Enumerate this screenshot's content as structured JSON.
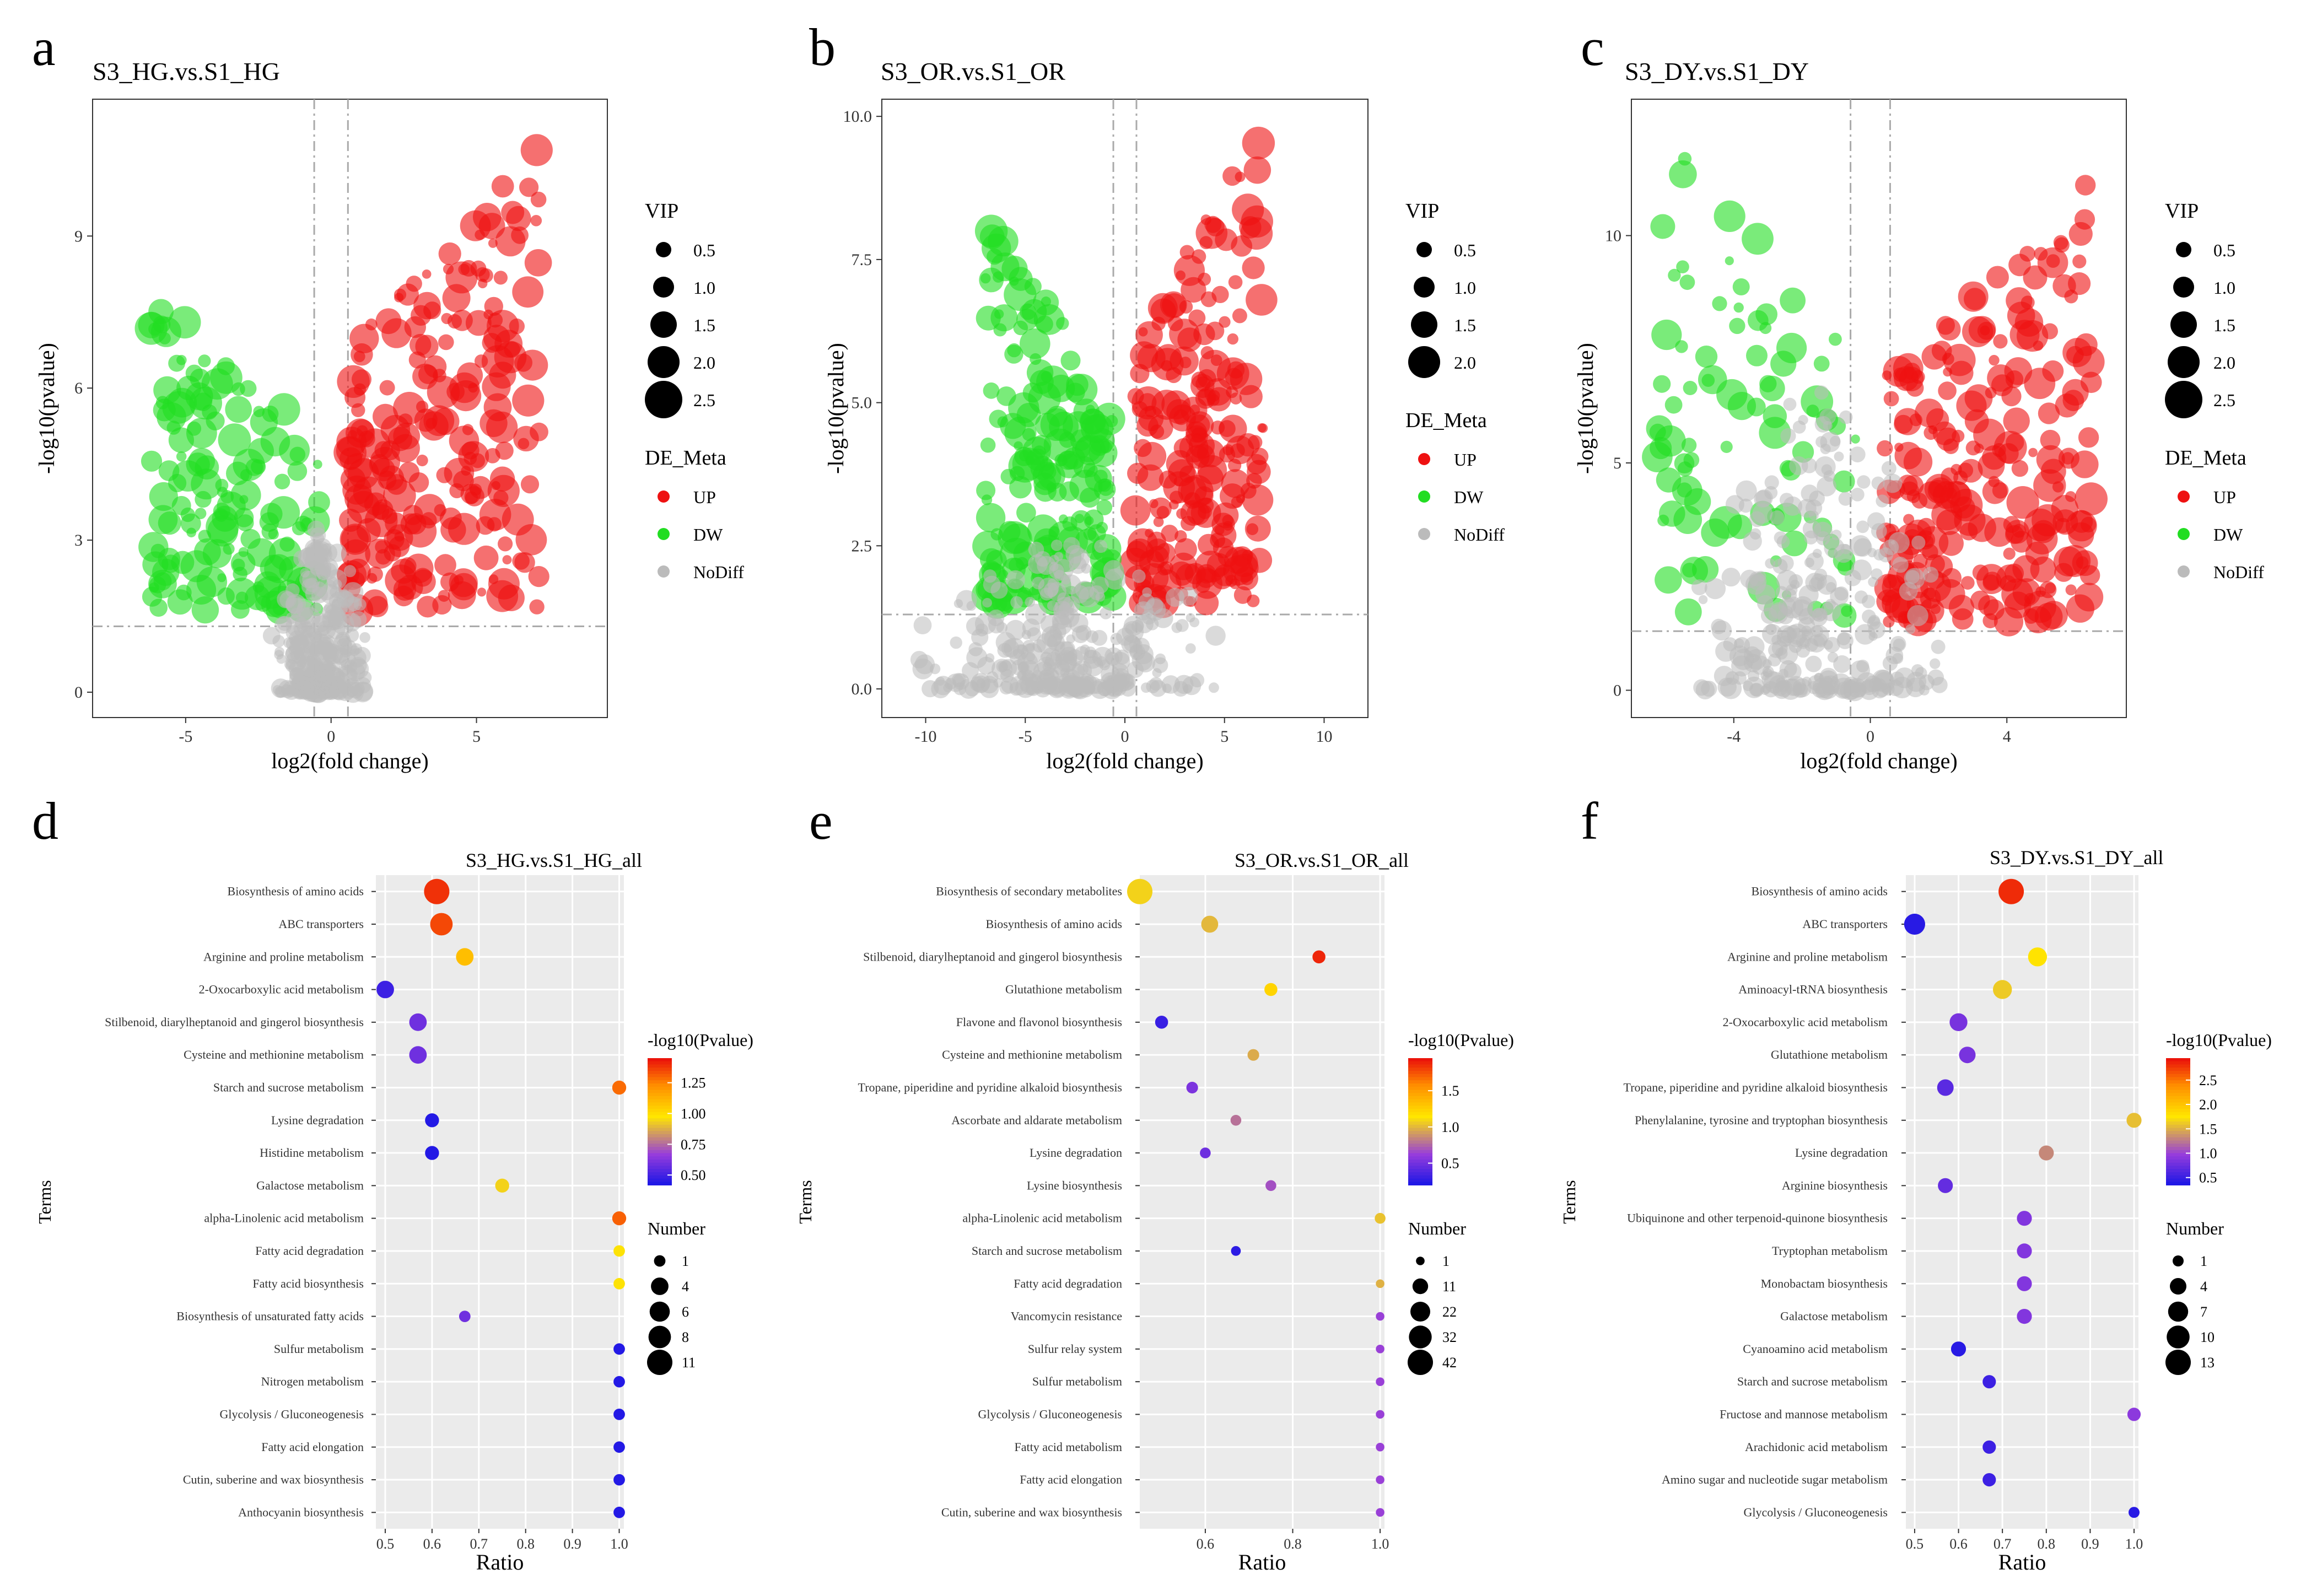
{
  "chart_data": [
    {
      "type": "scatter",
      "panel": "a",
      "title": "S3_HG.vs.S1_HG",
      "xlabel": "log2(fold change)",
      "ylabel": "-log10(pvalue)",
      "xlim": [
        -8.2,
        9.5
      ],
      "ylim": [
        -0.5,
        11.7
      ],
      "xticks": [
        -5,
        0,
        5
      ],
      "yticks": [
        0,
        3,
        6,
        9
      ],
      "xtick_labels": [
        "-5",
        "0",
        "5"
      ],
      "ytick_labels": [
        "0",
        "3",
        "6",
        "9"
      ],
      "vlines": [
        -0.58,
        0.58
      ],
      "hline": 1.3,
      "size_legend": {
        "title": "VIP",
        "labels": [
          "0.5",
          "1.0",
          "1.5",
          "2.0",
          "2.5"
        ]
      },
      "color_legend": {
        "title": "DE_Meta",
        "labels": [
          "UP",
          "DW",
          "NoDiff"
        ],
        "colors": [
          "#ee1111",
          "#22dd22",
          "#bbbbbb"
        ]
      },
      "series": [
        {
          "name": "UP",
          "color": "#ee1111",
          "xrange": [
            0.5,
            7.2
          ],
          "yrange": [
            1.6,
            10.9
          ],
          "count": 230,
          "seed": 11
        },
        {
          "name": "DW",
          "color": "#22dd22",
          "xrange": [
            -6.2,
            -0.4
          ],
          "yrange": [
            1.6,
            8.0
          ],
          "count": 150,
          "seed": 12
        },
        {
          "name": "NoDiff",
          "color": "#bbbbbb",
          "xrange": [
            -2.2,
            1.4
          ],
          "yrange": [
            0.0,
            3.5
          ],
          "count": 320,
          "seed": 13
        }
      ]
    },
    {
      "type": "scatter",
      "panel": "b",
      "title": "S3_OR.vs.S1_OR",
      "xlabel": "log2(fold change)",
      "ylabel": "-log10(pvalue)",
      "xlim": [
        -12.2,
        12.2
      ],
      "ylim": [
        -0.5,
        10.3
      ],
      "xticks": [
        -10,
        -5,
        0,
        5,
        10
      ],
      "yticks": [
        0,
        2.5,
        5,
        7.5,
        10
      ],
      "xtick_labels": [
        "-10",
        "-5",
        "0",
        "5",
        "10"
      ],
      "ytick_labels": [
        "0.0",
        "2.5",
        "5.0",
        "7.5",
        "10.0"
      ],
      "vlines": [
        -0.58,
        0.58
      ],
      "hline": 1.3,
      "size_legend": {
        "title": "VIP",
        "labels": [
          "0.5",
          "1.0",
          "1.5",
          "2.0"
        ]
      },
      "color_legend": {
        "title": "DE_Meta",
        "labels": [
          "UP",
          "DW",
          "NoDiff"
        ],
        "colors": [
          "#ee1111",
          "#22dd22",
          "#bbbbbb"
        ]
      },
      "series": [
        {
          "name": "UP",
          "color": "#ee1111",
          "xrange": [
            0.5,
            7.0
          ],
          "yrange": [
            1.5,
            9.9
          ],
          "count": 220,
          "seed": 21
        },
        {
          "name": "DW",
          "color": "#22dd22",
          "xrange": [
            -7.0,
            -0.5
          ],
          "yrange": [
            1.5,
            8.3
          ],
          "count": 200,
          "seed": 22
        },
        {
          "name": "NoDiff",
          "color": "#bbbbbb",
          "xrange": [
            -11.0,
            5.0
          ],
          "yrange": [
            0.0,
            3.0
          ],
          "count": 300,
          "seed": 23
        }
      ]
    },
    {
      "type": "scatter",
      "panel": "c",
      "title": "S3_DY.vs.S1_DY",
      "xlabel": "log2(fold change)",
      "ylabel": "-log10(pvalue)",
      "xlim": [
        -7.0,
        7.5
      ],
      "ylim": [
        -0.6,
        13.0
      ],
      "xticks": [
        -4,
        0,
        4
      ],
      "yticks": [
        0,
        5,
        10
      ],
      "xtick_labels": [
        "-4",
        "0",
        "4"
      ],
      "ytick_labels": [
        "0",
        "5",
        "10"
      ],
      "vlines": [
        -0.58,
        0.58
      ],
      "hline": 1.3,
      "size_legend": {
        "title": "VIP",
        "labels": [
          "0.5",
          "1.0",
          "1.5",
          "2.0",
          "2.5"
        ]
      },
      "color_legend": {
        "title": "DE_Meta",
        "labels": [
          "UP",
          "DW",
          "NoDiff"
        ],
        "colors": [
          "#ee1111",
          "#22dd22",
          "#bbbbbb"
        ]
      },
      "series": [
        {
          "name": "UP",
          "color": "#ee1111",
          "xrange": [
            0.4,
            6.5
          ],
          "yrange": [
            1.5,
            11.3
          ],
          "count": 250,
          "seed": 31
        },
        {
          "name": "DW",
          "color": "#22dd22",
          "xrange": [
            -6.3,
            -0.4
          ],
          "yrange": [
            1.6,
            12.6
          ],
          "count": 90,
          "seed": 32
        },
        {
          "name": "NoDiff",
          "color": "#bbbbbb",
          "xrange": [
            -5.5,
            2.5
          ],
          "yrange": [
            0.0,
            7.3
          ],
          "count": 280,
          "seed": 33
        }
      ]
    },
    {
      "type": "bubble",
      "panel": "d",
      "title": "S3_HG.vs.S1_HG_all",
      "xlabel": "Ratio",
      "ylabel": "Terms",
      "xlim": [
        0.48,
        1.01
      ],
      "xticks": [
        0.5,
        0.6,
        0.7,
        0.8,
        0.9,
        1.0
      ],
      "xtick_labels": [
        "0.5",
        "0.6",
        "0.7",
        "0.8",
        "0.9",
        "1.0"
      ],
      "colorbar": {
        "title": "-log10(Pvalue)",
        "min": 0.42,
        "max": 1.45,
        "ticks": [
          0.5,
          0.75,
          1.0,
          1.25
        ],
        "tick_labels": [
          "0.50",
          "0.75",
          "1.00",
          "1.25"
        ]
      },
      "size_legend": {
        "title": "Number",
        "values": [
          1,
          4,
          6,
          8,
          11
        ],
        "labels": [
          "1",
          "4",
          "6",
          "8",
          "11"
        ],
        "max": 11
      },
      "terms": [
        "Biosynthesis of amino acids",
        "ABC transporters",
        "Arginine and proline metabolism",
        "2-Oxocarboxylic acid metabolism",
        "Stilbenoid, diarylheptanoid and gingerol biosynthesis",
        "Cysteine and methionine metabolism",
        "Starch and sucrose metabolism",
        "Lysine degradation",
        "Histidine metabolism",
        "Galactose metabolism",
        "alpha-Linolenic acid metabolism",
        "Fatty acid degradation",
        "Fatty acid biosynthesis",
        "Biosynthesis of unsaturated fatty acids",
        "Sulfur metabolism",
        "Nitrogen metabolism",
        "Glycolysis / Gluconeogenesis",
        "Fatty acid elongation",
        "Cutin, suberine and wax biosynthesis",
        "Anthocyanin biosynthesis"
      ],
      "ratio": [
        0.61,
        0.62,
        0.67,
        0.5,
        0.57,
        0.57,
        1.0,
        0.6,
        0.6,
        0.75,
        1.0,
        1.0,
        1.0,
        0.67,
        1.0,
        1.0,
        1.0,
        1.0,
        1.0,
        1.0
      ],
      "pvalue": [
        1.4,
        1.36,
        1.1,
        0.5,
        0.6,
        0.6,
        1.3,
        0.45,
        0.45,
        0.95,
        1.32,
        0.98,
        0.98,
        0.6,
        0.45,
        0.45,
        0.45,
        0.45,
        0.45,
        0.45
      ],
      "number": [
        11,
        8,
        4,
        4,
        4,
        4,
        2,
        2,
        2,
        2,
        2,
        1,
        1,
        1,
        1,
        1,
        1,
        1,
        1,
        1
      ]
    },
    {
      "type": "bubble",
      "panel": "e",
      "title": "S3_OR.vs.S1_OR_all",
      "xlabel": "Ratio",
      "ylabel": "Terms",
      "xlim": [
        0.45,
        1.01
      ],
      "xticks": [
        0.6,
        0.8,
        1.0
      ],
      "xtick_labels": [
        "0.6",
        "0.8",
        "1.0"
      ],
      "colorbar": {
        "title": "-log10(Pvalue)",
        "min": 0.2,
        "max": 1.95,
        "ticks": [
          0.5,
          1.0,
          1.5
        ],
        "tick_labels": [
          "0.5",
          "1.0",
          "1.5"
        ]
      },
      "size_legend": {
        "title": "Number",
        "values": [
          1,
          11,
          22,
          32,
          42
        ],
        "labels": [
          "1",
          "11",
          "22",
          "32",
          "42"
        ],
        "max": 42
      },
      "terms": [
        "Biosynthesis of secondary metabolites",
        "Biosynthesis of amino acids",
        "Stilbenoid, diarylheptanoid and gingerol biosynthesis",
        "Glutathione metabolism",
        "Flavone and flavonol biosynthesis",
        "Cysteine and methionine metabolism",
        "Tropane, piperidine and pyridine alkaloid biosynthesis",
        "Ascorbate and aldarate metabolism",
        "Lysine degradation",
        "Lysine biosynthesis",
        "alpha-Linolenic acid metabolism",
        "Starch and sucrose metabolism",
        "Fatty acid degradation",
        "Vancomycin resistance",
        "Sulfur relay system",
        "Sulfur metabolism",
        "Glycolysis / Gluconeogenesis",
        "Fatty acid metabolism",
        "Fatty acid elongation",
        "Cutin, suberine and wax biosynthesis"
      ],
      "ratio": [
        0.45,
        0.61,
        0.86,
        0.75,
        0.5,
        0.71,
        0.57,
        0.67,
        0.6,
        0.75,
        1.0,
        0.67,
        1.0,
        1.0,
        1.0,
        1.0,
        1.0,
        1.0,
        1.0,
        1.0
      ],
      "pvalue": [
        1.1,
        1.02,
        1.9,
        1.25,
        0.32,
        0.98,
        0.55,
        0.8,
        0.5,
        0.7,
        1.05,
        0.28,
        1.0,
        0.65,
        0.65,
        0.65,
        0.65,
        0.65,
        0.65,
        0.65
      ],
      "number": [
        42,
        14,
        6,
        6,
        6,
        4,
        4,
        3,
        3,
        3,
        3,
        2,
        1,
        1,
        1,
        1,
        1,
        1,
        1,
        1
      ]
    },
    {
      "type": "bubble",
      "panel": "f",
      "title": "S3_DY.vs.S1_DY_all",
      "xlabel": "Ratio",
      "ylabel": "Terms",
      "xlim": [
        0.48,
        1.01
      ],
      "xticks": [
        0.5,
        0.6,
        0.7,
        0.8,
        0.9,
        1.0
      ],
      "xtick_labels": [
        "0.5",
        "0.6",
        "0.7",
        "0.8",
        "0.9",
        "1.0"
      ],
      "colorbar": {
        "title": "-log10(Pvalue)",
        "min": 0.35,
        "max": 2.95,
        "ticks": [
          0.5,
          1.0,
          1.5,
          2.0,
          2.5
        ],
        "tick_labels": [
          "0.5",
          "1.0",
          "1.5",
          "2.0",
          "2.5"
        ]
      },
      "size_legend": {
        "title": "Number",
        "values": [
          1,
          4,
          7,
          10,
          13
        ],
        "labels": [
          "1",
          "4",
          "7",
          "10",
          "13"
        ],
        "max": 13
      },
      "terms": [
        "Biosynthesis of amino acids",
        "ABC transporters",
        "Arginine and proline metabolism",
        "Aminoacyl-tRNA biosynthesis",
        "2-Oxocarboxylic acid metabolism",
        "Glutathione metabolism",
        "Tropane, piperidine and pyridine alkaloid biosynthesis",
        "Phenylalanine, tyrosine and tryptophan biosynthesis",
        "Lysine degradation",
        "Arginine biosynthesis",
        "Ubiquinone and other terpenoid-quinone biosynthesis",
        "Tryptophan metabolism",
        "Monobactam biosynthesis",
        "Galactose metabolism",
        "Cyanoamino acid metabolism",
        "Starch and sucrose metabolism",
        "Fructose and mannose metabolism",
        "Arachidonic acid metabolism",
        "Amino sugar and nucleotide sugar metabolism",
        "Glycolysis / Gluconeogenesis"
      ],
      "ratio": [
        0.72,
        0.5,
        0.78,
        0.7,
        0.6,
        0.62,
        0.57,
        1.0,
        0.8,
        0.57,
        0.75,
        0.75,
        0.75,
        0.75,
        0.6,
        0.67,
        1.0,
        0.67,
        0.67,
        1.0
      ],
      "pvalue": [
        2.85,
        0.45,
        1.8,
        1.65,
        0.85,
        0.85,
        0.7,
        1.6,
        1.35,
        0.75,
        0.9,
        0.9,
        0.9,
        0.9,
        0.45,
        0.55,
        0.95,
        0.55,
        0.55,
        0.45
      ],
      "number": [
        13,
        8,
        6,
        6,
        5,
        4,
        4,
        3,
        3,
        3,
        3,
        3,
        3,
        3,
        3,
        2,
        2,
        2,
        2,
        1
      ]
    }
  ],
  "panel_letters": [
    "a",
    "b",
    "c",
    "d",
    "e",
    "f"
  ]
}
